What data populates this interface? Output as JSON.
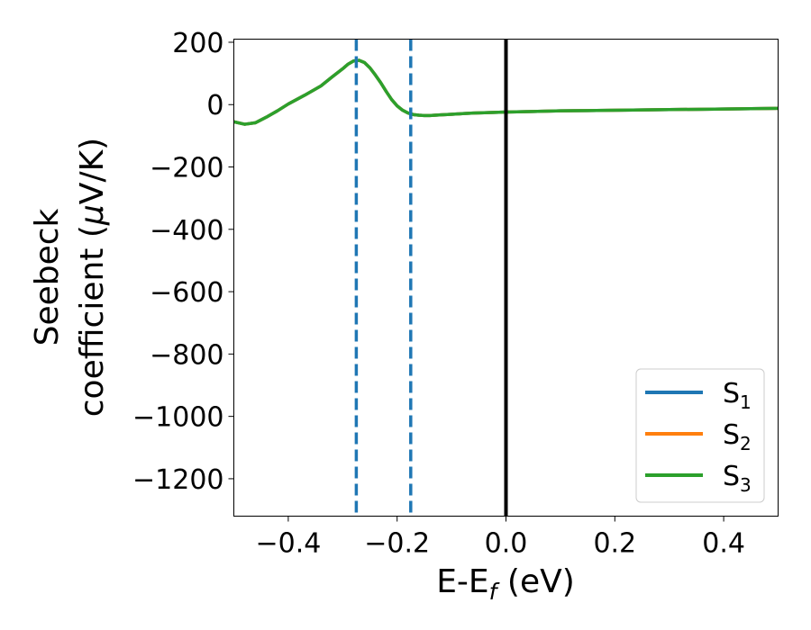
{
  "chart_data": {
    "type": "line",
    "xlabel": "E-E",
    "xlabel_sub": "f",
    "xlabel_unit": " (eV)",
    "ylabel_line1": "Seebeck",
    "ylabel_line2": "coefficient  (",
    "ylabel_mu": "μ",
    "ylabel_unit": "V/K)",
    "xlim": [
      -0.5,
      0.5
    ],
    "ylim": [
      -1320,
      210
    ],
    "xticks": [
      -0.4,
      -0.2,
      0.0,
      0.2,
      0.4
    ],
    "xtick_labels": [
      "−0.4",
      "−0.2",
      "0.0",
      "0.2",
      "0.4"
    ],
    "yticks": [
      200,
      0,
      -200,
      -400,
      -600,
      -800,
      -1000,
      -1200
    ],
    "ytick_labels": [
      "200",
      "0",
      "−200",
      "−400",
      "−600",
      "−800",
      "−1000",
      "−1200"
    ],
    "grid": false,
    "legend_position": "lower-right",
    "series": [
      {
        "name": "S",
        "sub": "1",
        "color": "#1f77b4",
        "x": [
          -0.5,
          -0.48,
          -0.46,
          -0.44,
          -0.42,
          -0.4,
          -0.37,
          -0.34,
          -0.32,
          -0.3,
          -0.29,
          -0.28,
          -0.27,
          -0.26,
          -0.25,
          -0.24,
          -0.23,
          -0.22,
          -0.21,
          -0.2,
          -0.19,
          -0.18,
          -0.17,
          -0.16,
          -0.15,
          -0.14,
          -0.12,
          -0.1,
          -0.08,
          -0.06,
          -0.04,
          -0.02,
          0.0,
          0.05,
          0.1,
          0.15,
          0.2,
          0.25,
          0.3,
          0.35,
          0.4,
          0.45,
          0.5
        ],
        "y": [
          -55,
          -63,
          -58,
          -40,
          -20,
          2,
          30,
          60,
          88,
          115,
          130,
          140,
          142,
          135,
          118,
          95,
          70,
          42,
          16,
          -4,
          -18,
          -27,
          -32,
          -34,
          -35,
          -35,
          -33,
          -31,
          -29,
          -27,
          -26,
          -25,
          -24,
          -22,
          -20,
          -19,
          -18,
          -17,
          -16,
          -15,
          -14,
          -13,
          -12
        ]
      },
      {
        "name": "S",
        "sub": "2",
        "color": "#ff7f0e",
        "x": [
          -0.5,
          -0.48,
          -0.46,
          -0.44,
          -0.42,
          -0.4,
          -0.37,
          -0.34,
          -0.32,
          -0.3,
          -0.29,
          -0.28,
          -0.27,
          -0.26,
          -0.25,
          -0.24,
          -0.23,
          -0.22,
          -0.21,
          -0.2,
          -0.19,
          -0.18,
          -0.17,
          -0.16,
          -0.15,
          -0.14,
          -0.12,
          -0.1,
          -0.08,
          -0.06,
          -0.04,
          -0.02,
          0.0,
          0.05,
          0.1,
          0.15,
          0.2,
          0.25,
          0.3,
          0.35,
          0.4,
          0.45,
          0.5
        ],
        "y": [
          -55,
          -63,
          -58,
          -40,
          -20,
          2,
          30,
          60,
          88,
          115,
          130,
          140,
          142,
          135,
          118,
          95,
          70,
          42,
          16,
          -4,
          -18,
          -27,
          -32,
          -34,
          -35,
          -35,
          -33,
          -31,
          -29,
          -27,
          -26,
          -25,
          -24,
          -22,
          -20,
          -19,
          -18,
          -17,
          -16,
          -15,
          -14,
          -13,
          -12
        ]
      },
      {
        "name": "S",
        "sub": "3",
        "color": "#2ca02c",
        "x": [
          -0.5,
          -0.48,
          -0.46,
          -0.44,
          -0.42,
          -0.4,
          -0.37,
          -0.34,
          -0.32,
          -0.3,
          -0.29,
          -0.28,
          -0.27,
          -0.26,
          -0.25,
          -0.24,
          -0.23,
          -0.22,
          -0.21,
          -0.2,
          -0.19,
          -0.18,
          -0.17,
          -0.16,
          -0.15,
          -0.14,
          -0.12,
          -0.1,
          -0.08,
          -0.06,
          -0.04,
          -0.02,
          0.0,
          0.05,
          0.1,
          0.15,
          0.2,
          0.25,
          0.3,
          0.35,
          0.4,
          0.45,
          0.5
        ],
        "y": [
          -55,
          -63,
          -58,
          -40,
          -20,
          2,
          30,
          60,
          88,
          115,
          130,
          140,
          142,
          135,
          118,
          95,
          70,
          42,
          16,
          -4,
          -18,
          -27,
          -32,
          -34,
          -35,
          -35,
          -33,
          -31,
          -29,
          -27,
          -26,
          -25,
          -24,
          -22,
          -20,
          -19,
          -18,
          -17,
          -16,
          -15,
          -14,
          -13,
          -12
        ]
      }
    ],
    "vlines": [
      {
        "x": -0.275,
        "style": "dashed",
        "color": "#1f77b4"
      },
      {
        "x": -0.175,
        "style": "dashed",
        "color": "#1f77b4"
      },
      {
        "x": 0.0,
        "style": "solid",
        "color": "#000000"
      }
    ]
  }
}
